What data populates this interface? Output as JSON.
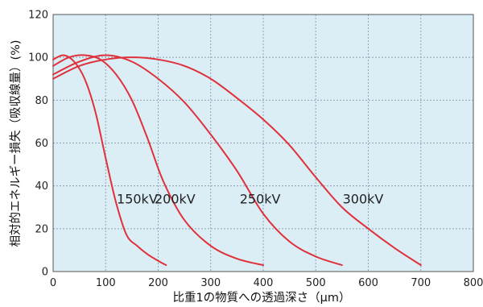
{
  "chart_data": {
    "type": "line",
    "xlabel": "比重1の物質への透過深さ（μm）",
    "ylabel": "相対的エネルギー損失（吸収線量）(%)",
    "xlim": [
      0,
      800
    ],
    "ylim": [
      0,
      120
    ],
    "x_ticks": [
      0,
      100,
      200,
      300,
      400,
      500,
      600,
      700,
      800
    ],
    "y_ticks": [
      0,
      20,
      40,
      60,
      80,
      100,
      120
    ],
    "grid": true,
    "colors": {
      "plot_bg": "#dbeef6",
      "curve": "#e0303a",
      "grid": "#8fa3b6"
    },
    "series": [
      {
        "name": "150kV",
        "x": [
          0,
          20,
          40,
          60,
          80,
          100,
          120,
          140,
          160,
          180,
          200,
          215
        ],
        "y": [
          99,
          101,
          98,
          90,
          75,
          53,
          32,
          17,
          12,
          8,
          5,
          3
        ]
      },
      {
        "name": "200kV",
        "x": [
          0,
          30,
          60,
          90,
          120,
          150,
          180,
          210,
          250,
          300,
          350,
          400
        ],
        "y": [
          96,
          100,
          101,
          99,
          92,
          80,
          62,
          42,
          24,
          12,
          6,
          3
        ]
      },
      {
        "name": "250kV",
        "x": [
          0,
          50,
          100,
          150,
          200,
          250,
          300,
          350,
          400,
          450,
          500,
          550
        ],
        "y": [
          92,
          98,
          101,
          98,
          90,
          79,
          64,
          47,
          27,
          14,
          7,
          3
        ]
      },
      {
        "name": "300kV",
        "x": [
          0,
          50,
          100,
          150,
          200,
          250,
          300,
          350,
          400,
          450,
          500,
          550,
          600,
          650,
          700
        ],
        "y": [
          90,
          96,
          99,
          100,
          99,
          96,
          90,
          81,
          71,
          59,
          44,
          30,
          20,
          11,
          3
        ]
      }
    ],
    "labels": [
      {
        "text": "150kV",
        "x": 160,
        "y": 34
      },
      {
        "text": "200kV",
        "x": 232,
        "y": 34
      },
      {
        "text": "250kV",
        "x": 394,
        "y": 34
      },
      {
        "text": "300kV",
        "x": 590,
        "y": 34
      }
    ]
  }
}
